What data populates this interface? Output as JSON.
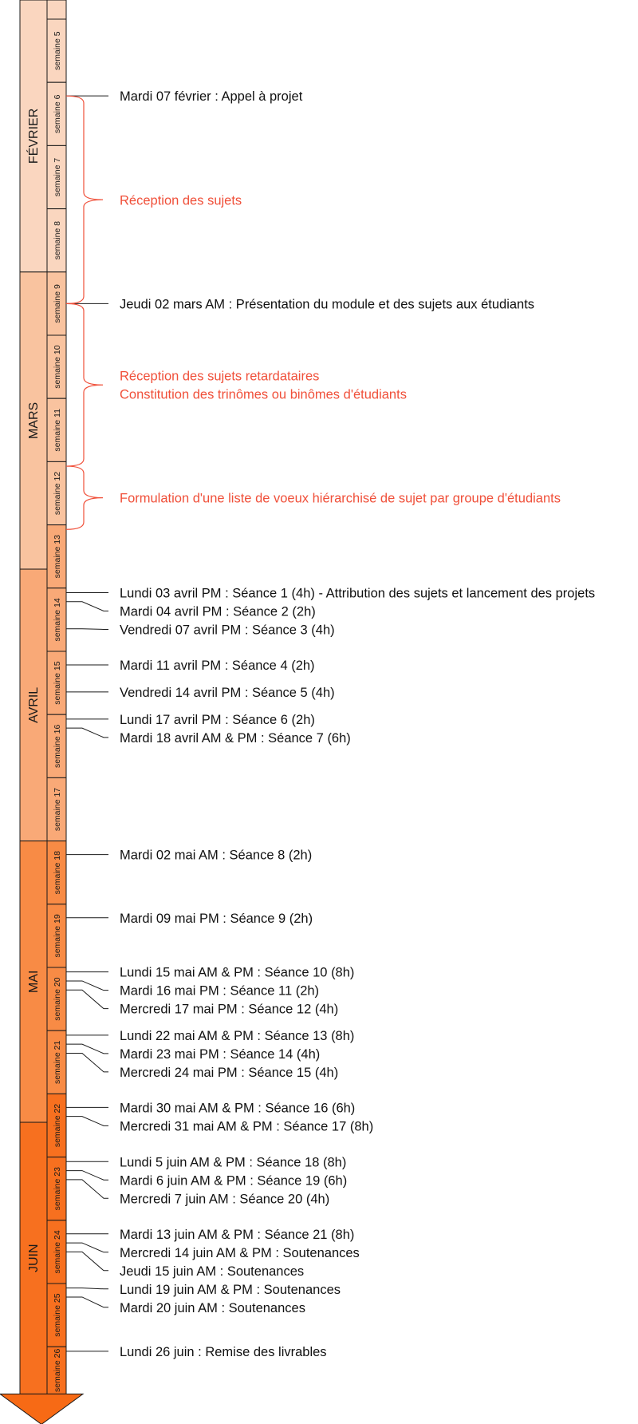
{
  "colors": {
    "black_event": "#111111",
    "red_phase": "#f0503a",
    "outline": "#1a1a1a",
    "fevrier": "#fad6bf",
    "mars": "#f9c39f",
    "avril": "#f9a977",
    "mai": "#f88b45",
    "juin": "#f7701f",
    "arrow_head": "#f76a15"
  },
  "months": [
    {
      "label": "FÉVRIER",
      "top_week": 5,
      "bottom_week": 8,
      "color_key": "fevrier"
    },
    {
      "label": "MARS",
      "top_week": 9,
      "bottom_week": 13,
      "color_key": "mars"
    },
    {
      "label": "AVRIL",
      "top_week": 13,
      "bottom_week": 17,
      "color_key": "avril"
    },
    {
      "label": "MAI",
      "top_week": 18,
      "bottom_week": 21,
      "color_key": "mai"
    },
    {
      "label": "JUIN",
      "top_week": 22,
      "bottom_week": 26,
      "color_key": "juin"
    }
  ],
  "weeks": [
    {
      "number": 5,
      "label": "semaine 5"
    },
    {
      "number": 6,
      "label": "semaine 6"
    },
    {
      "number": 7,
      "label": "semaine 7"
    },
    {
      "number": 8,
      "label": "semaine 8"
    },
    {
      "number": 9,
      "label": "semaine 9"
    },
    {
      "number": 10,
      "label": "semaine 10"
    },
    {
      "number": 11,
      "label": "semaine 11"
    },
    {
      "number": 12,
      "label": "semaine 12"
    },
    {
      "number": 13,
      "label": "semaine 13"
    },
    {
      "number": 14,
      "label": "semaine 14"
    },
    {
      "number": 15,
      "label": "semaine 15"
    },
    {
      "number": 16,
      "label": "semaine 16"
    },
    {
      "number": 17,
      "label": "semaine 17"
    },
    {
      "number": 18,
      "label": "semaine 18"
    },
    {
      "number": 19,
      "label": "semaine 19"
    },
    {
      "number": 20,
      "label": "semaine 20"
    },
    {
      "number": 21,
      "label": "semaine 21"
    },
    {
      "number": 22,
      "label": "semaine 22"
    },
    {
      "number": 23,
      "label": "semaine 23"
    },
    {
      "number": 24,
      "label": "semaine 24"
    },
    {
      "number": 25,
      "label": "semaine 25"
    },
    {
      "number": 26,
      "label": "semaine 26"
    }
  ],
  "events": [
    {
      "text": "Mardi 07 février : Appel à projet",
      "week": 6,
      "day": 2
    },
    {
      "text": "Jeudi 02 mars AM : Présentation du module et des sujets aux étudiants",
      "week": 9,
      "day": 4
    },
    {
      "text": "Lundi 03 avril PM : Séance 1 (4h) - Attribution des sujets et lancement des projets",
      "week": 14,
      "day": 1
    },
    {
      "text": "Mardi 04 avril PM : Séance 2 (2h)",
      "week": 14,
      "day": 2
    },
    {
      "text": "Vendredi 07 avril PM : Séance 3 (4h)",
      "week": 14,
      "day": 5
    },
    {
      "text": "Mardi 11 avril PM : Séance 4 (2h)",
      "week": 15,
      "day": 2
    },
    {
      "text": "Vendredi 14 avril PM : Séance 5 (4h)",
      "week": 15,
      "day": 5
    },
    {
      "text": "Lundi 17 avril PM : Séance 6 (2h)",
      "week": 16,
      "day": 1
    },
    {
      "text": "Mardi 18 avril AM & PM : Séance 7 (6h)",
      "week": 16,
      "day": 2
    },
    {
      "text": "Mardi 02 mai AM : Séance 8 (2h)",
      "week": 18,
      "day": 2
    },
    {
      "text": "Mardi 09 mai PM : Séance 9 (2h)",
      "week": 19,
      "day": 2
    },
    {
      "text": "Lundi 15 mai AM & PM : Séance 10 (8h)",
      "week": 20,
      "day": 1
    },
    {
      "text": "Mardi 16 mai PM : Séance 11 (2h)",
      "week": 20,
      "day": 2
    },
    {
      "text": "Mercredi 17 mai PM : Séance 12 (4h)",
      "week": 20,
      "day": 3
    },
    {
      "text": "Lundi 22 mai AM & PM : Séance 13 (8h)",
      "week": 21,
      "day": 1
    },
    {
      "text": "Mardi 23 mai PM : Séance 14 (4h)",
      "week": 21,
      "day": 2
    },
    {
      "text": "Mercredi 24 mai PM : Séance 15 (4h)",
      "week": 21,
      "day": 3
    },
    {
      "text": "Mardi 30 mai AM & PM : Séance 16 (6h)",
      "week": 22,
      "day": 2
    },
    {
      "text": "Mercredi 31 mai AM & PM : Séance 17 (8h)",
      "week": 22,
      "day": 3
    },
    {
      "text": "Lundi 5 juin AM & PM : Séance 18 (8h)",
      "week": 23,
      "day": 1
    },
    {
      "text": "Mardi 6 juin AM & PM : Séance 19 (6h)",
      "week": 23,
      "day": 2
    },
    {
      "text": "Mercredi 7 juin AM : Séance 20 (4h)",
      "week": 23,
      "day": 3
    },
    {
      "text": "Mardi 13 juin AM & PM : Séance 21 (8h)",
      "week": 24,
      "day": 2
    },
    {
      "text": "Mercredi 14 juin AM & PM : Soutenances",
      "week": 24,
      "day": 3
    },
    {
      "text": "Jeudi 15 juin AM : Soutenances",
      "week": 24,
      "day": 4
    },
    {
      "text": "Lundi 19 juin AM & PM : Soutenances",
      "week": 25,
      "day": 1
    },
    {
      "text": "Mardi 20 juin AM : Soutenances",
      "week": 25,
      "day": 2
    },
    {
      "text": "Lundi 26 juin : Remise des livrables",
      "week": 26,
      "day": 1
    }
  ],
  "phases": [
    {
      "lines": [
        "Réception des sujets"
      ],
      "from_week": 6,
      "from_day": 2,
      "to_week": 9,
      "to_day": 4
    },
    {
      "lines": [
        "Réception des sujets retardataires",
        "Constitution des trinômes ou binômes d'étudiants"
      ],
      "from_week": 9,
      "from_day": 4,
      "to_week": 12,
      "to_day": 1
    },
    {
      "lines": [
        "Formulation d'une liste de voeux hiérarchisé de sujet par groupe d'étudiants"
      ],
      "from_week": 12,
      "from_day": 1,
      "to_week": 13,
      "to_day": 1
    }
  ]
}
